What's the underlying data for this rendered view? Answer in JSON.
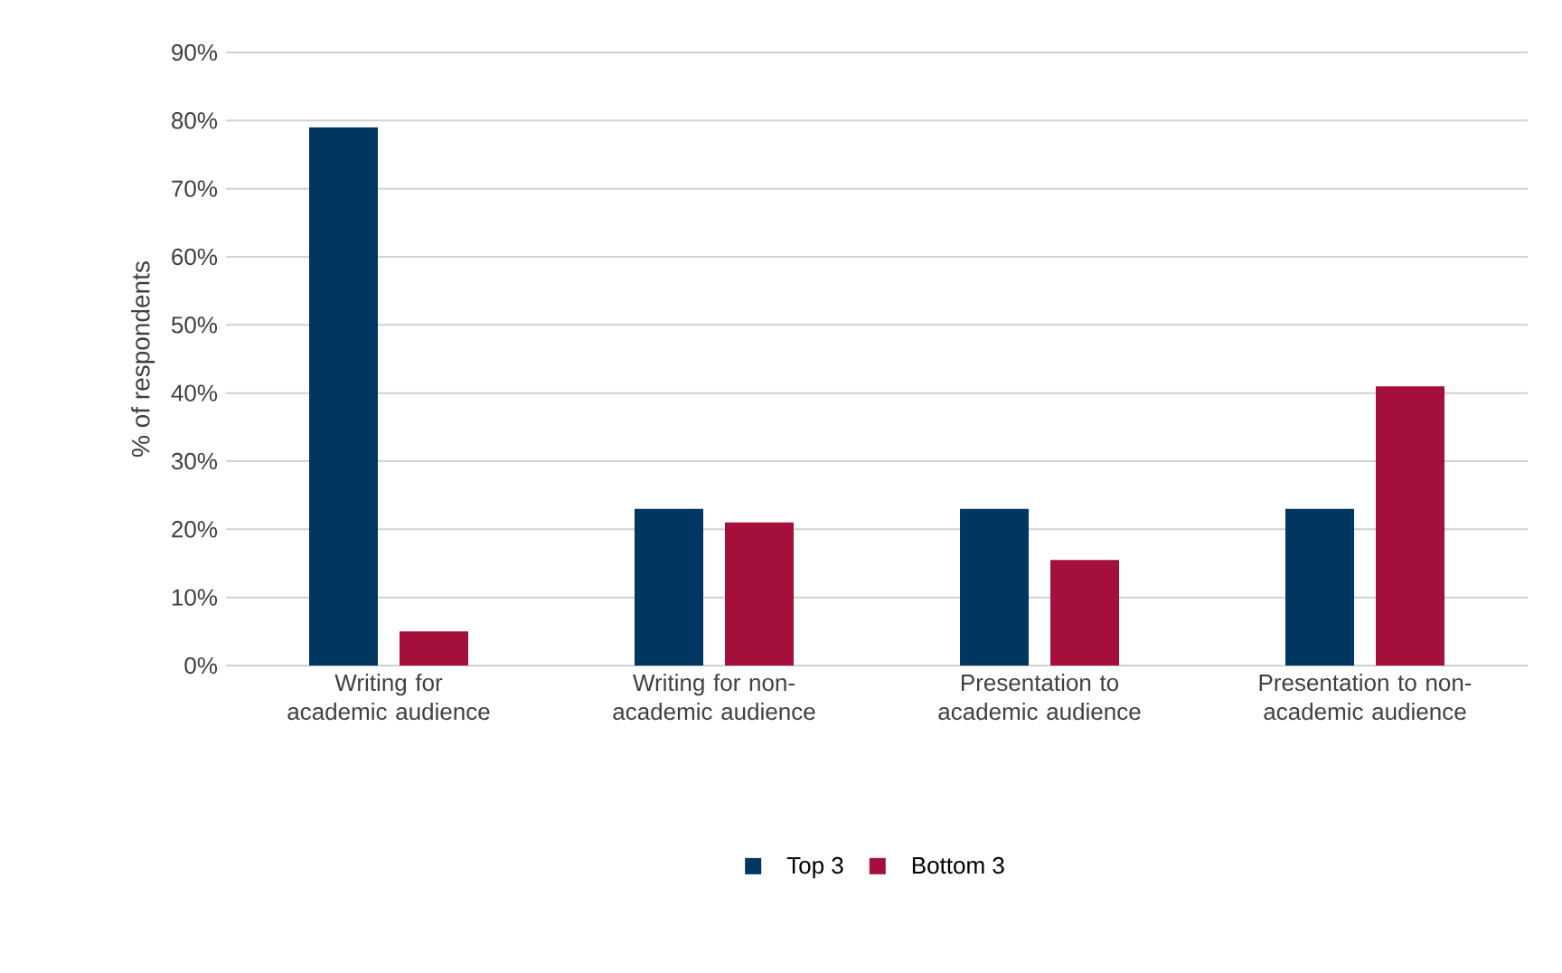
{
  "chart_data": {
    "type": "bar",
    "categories": [
      "Writing for academic audience",
      "Writing for non-academic audience",
      "Presentation to academic audience",
      "Presentation to non-academic audience"
    ],
    "ylabel": "% of respondents",
    "series": [
      {
        "name": "Top 3",
        "color": "#003660",
        "values": [
          79,
          23,
          23,
          23
        ]
      },
      {
        "name": "Bottom 3",
        "color": "#a50f3b",
        "values": [
          5,
          21,
          15.5,
          41
        ]
      }
    ],
    "ylim": [
      0,
      90
    ],
    "yticks": [
      {
        "value": 0,
        "label": "0%"
      },
      {
        "value": 10,
        "label": "10%"
      },
      {
        "value": 20,
        "label": "20%"
      },
      {
        "value": 30,
        "label": "30%"
      },
      {
        "value": 40,
        "label": "40%"
      },
      {
        "value": 50,
        "label": "50%"
      },
      {
        "value": 60,
        "label": "60%"
      },
      {
        "value": 70,
        "label": "70%"
      },
      {
        "value": 80,
        "label": "80%"
      },
      {
        "value": 90,
        "label": "90%"
      }
    ],
    "grid": "y",
    "legend": "bottom"
  }
}
